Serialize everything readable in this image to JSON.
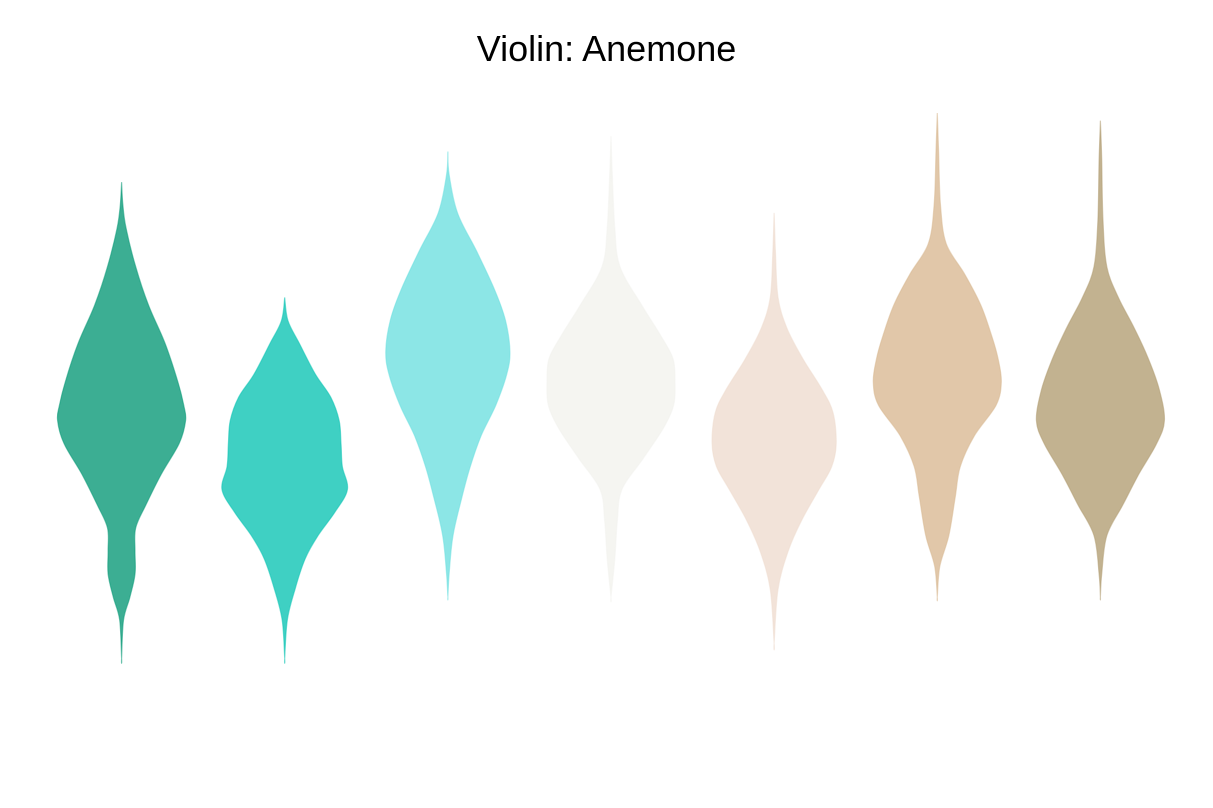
{
  "chart_data": {
    "type": "violin",
    "title": "Violin: Anemone",
    "xlabel": "",
    "ylabel": "",
    "grid": false,
    "legend": "none",
    "axes_visible": false,
    "ylim": [
      -3.9,
      4.3
    ],
    "series": [
      {
        "color": "#0b9a78",
        "y_max": 3.1,
        "y_min": -3.1,
        "profile": [
          [
            3.1,
            0
          ],
          [
            2.8,
            0.02
          ],
          [
            2.5,
            0.07
          ],
          [
            2.0,
            0.22
          ],
          [
            1.5,
            0.42
          ],
          [
            1.0,
            0.68
          ],
          [
            0.5,
            0.88
          ],
          [
            0.2,
            0.97
          ],
          [
            0.0,
            1.0
          ],
          [
            -0.3,
            0.9
          ],
          [
            -0.7,
            0.62
          ],
          [
            -1.1,
            0.38
          ],
          [
            -1.4,
            0.22
          ],
          [
            -1.7,
            0.21
          ],
          [
            -2.0,
            0.21
          ],
          [
            -2.3,
            0.13
          ],
          [
            -2.6,
            0.03
          ],
          [
            -3.1,
            0
          ]
        ]
      },
      {
        "color": "#0fc4b4",
        "y_max": 1.6,
        "y_min": -3.1,
        "profile": [
          [
            1.6,
            0
          ],
          [
            1.3,
            0.05
          ],
          [
            1.0,
            0.23
          ],
          [
            0.6,
            0.48
          ],
          [
            0.3,
            0.72
          ],
          [
            0.0,
            0.85
          ],
          [
            -0.3,
            0.88
          ],
          [
            -0.6,
            0.9
          ],
          [
            -0.9,
            0.98
          ],
          [
            -1.2,
            0.78
          ],
          [
            -1.5,
            0.52
          ],
          [
            -1.8,
            0.32
          ],
          [
            -2.2,
            0.16
          ],
          [
            -2.6,
            0.04
          ],
          [
            -3.1,
            0
          ]
        ]
      },
      {
        "color": "#6fe0e0",
        "y_max": 3.5,
        "y_min": -2.3,
        "profile": [
          [
            3.5,
            0
          ],
          [
            3.2,
            0.02
          ],
          [
            2.7,
            0.15
          ],
          [
            2.2,
            0.45
          ],
          [
            1.7,
            0.73
          ],
          [
            1.3,
            0.9
          ],
          [
            0.9,
            0.97
          ],
          [
            0.6,
            0.92
          ],
          [
            0.2,
            0.75
          ],
          [
            -0.2,
            0.52
          ],
          [
            -0.6,
            0.35
          ],
          [
            -1.0,
            0.22
          ],
          [
            -1.5,
            0.08
          ],
          [
            -2.0,
            0.02
          ],
          [
            -2.3,
            0
          ]
        ]
      },
      {
        "color": "#f2f3ee",
        "y_max": 3.7,
        "y_min": -2.3,
        "profile": [
          [
            3.7,
            0
          ],
          [
            3.2,
            0.02
          ],
          [
            2.5,
            0.06
          ],
          [
            2.0,
            0.14
          ],
          [
            1.5,
            0.48
          ],
          [
            1.1,
            0.78
          ],
          [
            0.8,
            0.97
          ],
          [
            0.5,
            1.0
          ],
          [
            0.2,
            0.98
          ],
          [
            -0.1,
            0.82
          ],
          [
            -0.5,
            0.5
          ],
          [
            -0.9,
            0.17
          ],
          [
            -1.3,
            0.1
          ],
          [
            -1.8,
            0.06
          ],
          [
            -2.3,
            0
          ]
        ]
      },
      {
        "color": "#efdccf",
        "y_max": 2.7,
        "y_min": -2.9,
        "profile": [
          [
            2.7,
            0
          ],
          [
            2.2,
            0.02
          ],
          [
            1.6,
            0.06
          ],
          [
            1.2,
            0.2
          ],
          [
            0.8,
            0.45
          ],
          [
            0.4,
            0.75
          ],
          [
            0.1,
            0.92
          ],
          [
            -0.3,
            0.97
          ],
          [
            -0.6,
            0.9
          ],
          [
            -0.9,
            0.7
          ],
          [
            -1.3,
            0.43
          ],
          [
            -1.7,
            0.22
          ],
          [
            -2.2,
            0.06
          ],
          [
            -2.9,
            0
          ]
        ]
      },
      {
        "color": "#d9b994",
        "y_max": 4.0,
        "y_min": -2.3,
        "profile": [
          [
            4.0,
            0
          ],
          [
            3.5,
            0.02
          ],
          [
            2.8,
            0.05
          ],
          [
            2.3,
            0.14
          ],
          [
            1.9,
            0.43
          ],
          [
            1.5,
            0.68
          ],
          [
            1.1,
            0.85
          ],
          [
            0.8,
            0.95
          ],
          [
            0.5,
            1.0
          ],
          [
            0.2,
            0.92
          ],
          [
            -0.2,
            0.58
          ],
          [
            -0.6,
            0.36
          ],
          [
            -1.0,
            0.28
          ],
          [
            -1.5,
            0.18
          ],
          [
            -1.9,
            0.04
          ],
          [
            -2.3,
            0
          ]
        ]
      },
      {
        "color": "#b39f74",
        "y_max": 3.9,
        "y_min": -2.3,
        "profile": [
          [
            3.9,
            0
          ],
          [
            3.4,
            0.02
          ],
          [
            2.6,
            0.04
          ],
          [
            2.0,
            0.1
          ],
          [
            1.6,
            0.28
          ],
          [
            1.2,
            0.53
          ],
          [
            0.8,
            0.75
          ],
          [
            0.4,
            0.92
          ],
          [
            0.0,
            1.0
          ],
          [
            -0.3,
            0.88
          ],
          [
            -0.7,
            0.6
          ],
          [
            -1.1,
            0.35
          ],
          [
            -1.5,
            0.1
          ],
          [
            -2.0,
            0.02
          ],
          [
            -2.3,
            0
          ]
        ]
      }
    ]
  }
}
